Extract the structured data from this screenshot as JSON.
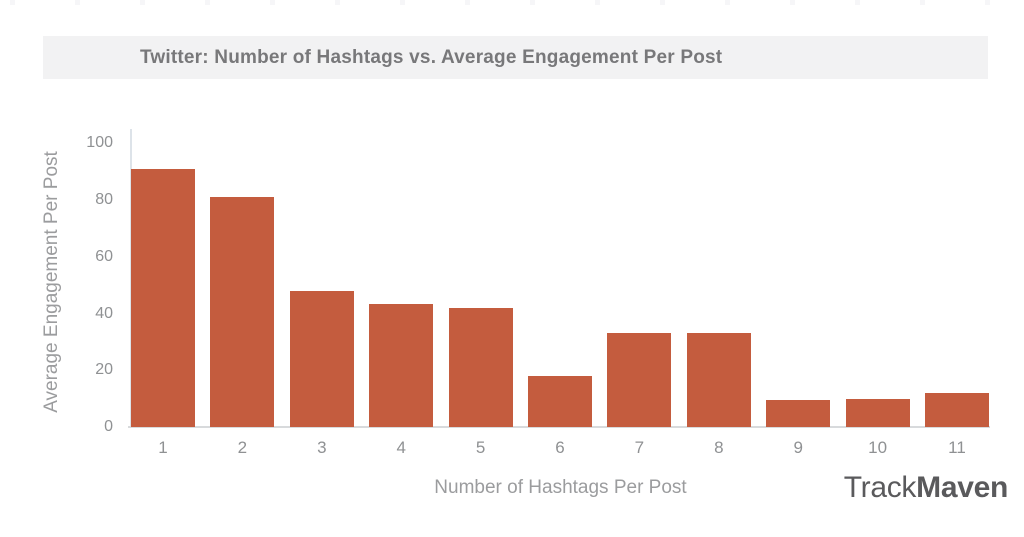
{
  "chart_data": {
    "type": "bar",
    "title": "Twitter: Number of Hashtags vs. Average Engagement Per Post",
    "xlabel": "Number of Hashtags Per Post",
    "ylabel": "Average Engagement Per Post",
    "categories": [
      "1",
      "2",
      "3",
      "4",
      "5",
      "6",
      "7",
      "8",
      "9",
      "10",
      "11"
    ],
    "values": [
      91,
      81,
      48,
      43.5,
      42,
      18,
      33,
      33,
      9.5,
      10,
      12
    ],
    "ylim": [
      0,
      100
    ],
    "yticks": [
      0,
      20,
      40,
      60,
      80,
      100
    ],
    "grid": false,
    "legend": null,
    "bar_color": "#c45c3e"
  },
  "branding": {
    "name_light": "Track",
    "name_bold": "Maven"
  },
  "colors": {
    "title_band": "#f2f2f3",
    "title_text": "#78787a",
    "tick_label": "#8f9193",
    "axis_title": "#9b9c9e",
    "y_axis_line": "#dde3e9",
    "x_axis_line": "#d8dadc",
    "brand_text": "#5a5a5c"
  }
}
